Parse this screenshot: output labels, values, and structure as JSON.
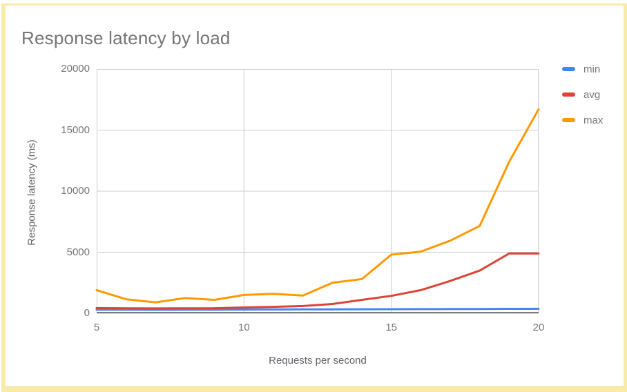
{
  "frame": {
    "border_color": "#f8eaa9"
  },
  "chart_data": {
    "type": "line",
    "title": "Response latency by load",
    "xlabel": "Requests per second",
    "ylabel": "Response latency (ms)",
    "x": [
      5,
      6,
      7,
      8,
      9,
      10,
      11,
      12,
      13,
      14,
      15,
      16,
      17,
      18,
      19,
      20
    ],
    "series": [
      {
        "name": "min",
        "color": "#4285f4",
        "values": [
          300,
          295,
          290,
          295,
          300,
          310,
          315,
          320,
          330,
          335,
          340,
          345,
          350,
          355,
          365,
          375
        ]
      },
      {
        "name": "avg",
        "color": "#db4437",
        "values": [
          430,
          410,
          400,
          410,
          420,
          480,
          530,
          600,
          760,
          1100,
          1430,
          1900,
          2650,
          3500,
          4900,
          4900
        ]
      },
      {
        "name": "max",
        "color": "#ff9900",
        "values": [
          1900,
          1150,
          900,
          1250,
          1100,
          1500,
          1600,
          1450,
          2500,
          2800,
          4800,
          5050,
          5950,
          7150,
          12400,
          16700
        ]
      }
    ],
    "xlim": [
      5,
      20
    ],
    "ylim": [
      0,
      20000
    ],
    "x_ticks": [
      5,
      10,
      15,
      20
    ],
    "y_ticks": [
      0,
      5000,
      10000,
      15000,
      20000
    ],
    "grid": true,
    "legend_position": "right"
  },
  "styles": {
    "title_color": "#757575",
    "tick_color": "#757575",
    "axis_title_color": "#5f6368",
    "grid_color": "#cccccc",
    "baseline_color": "#333333",
    "legend_text_color": "#757575"
  }
}
